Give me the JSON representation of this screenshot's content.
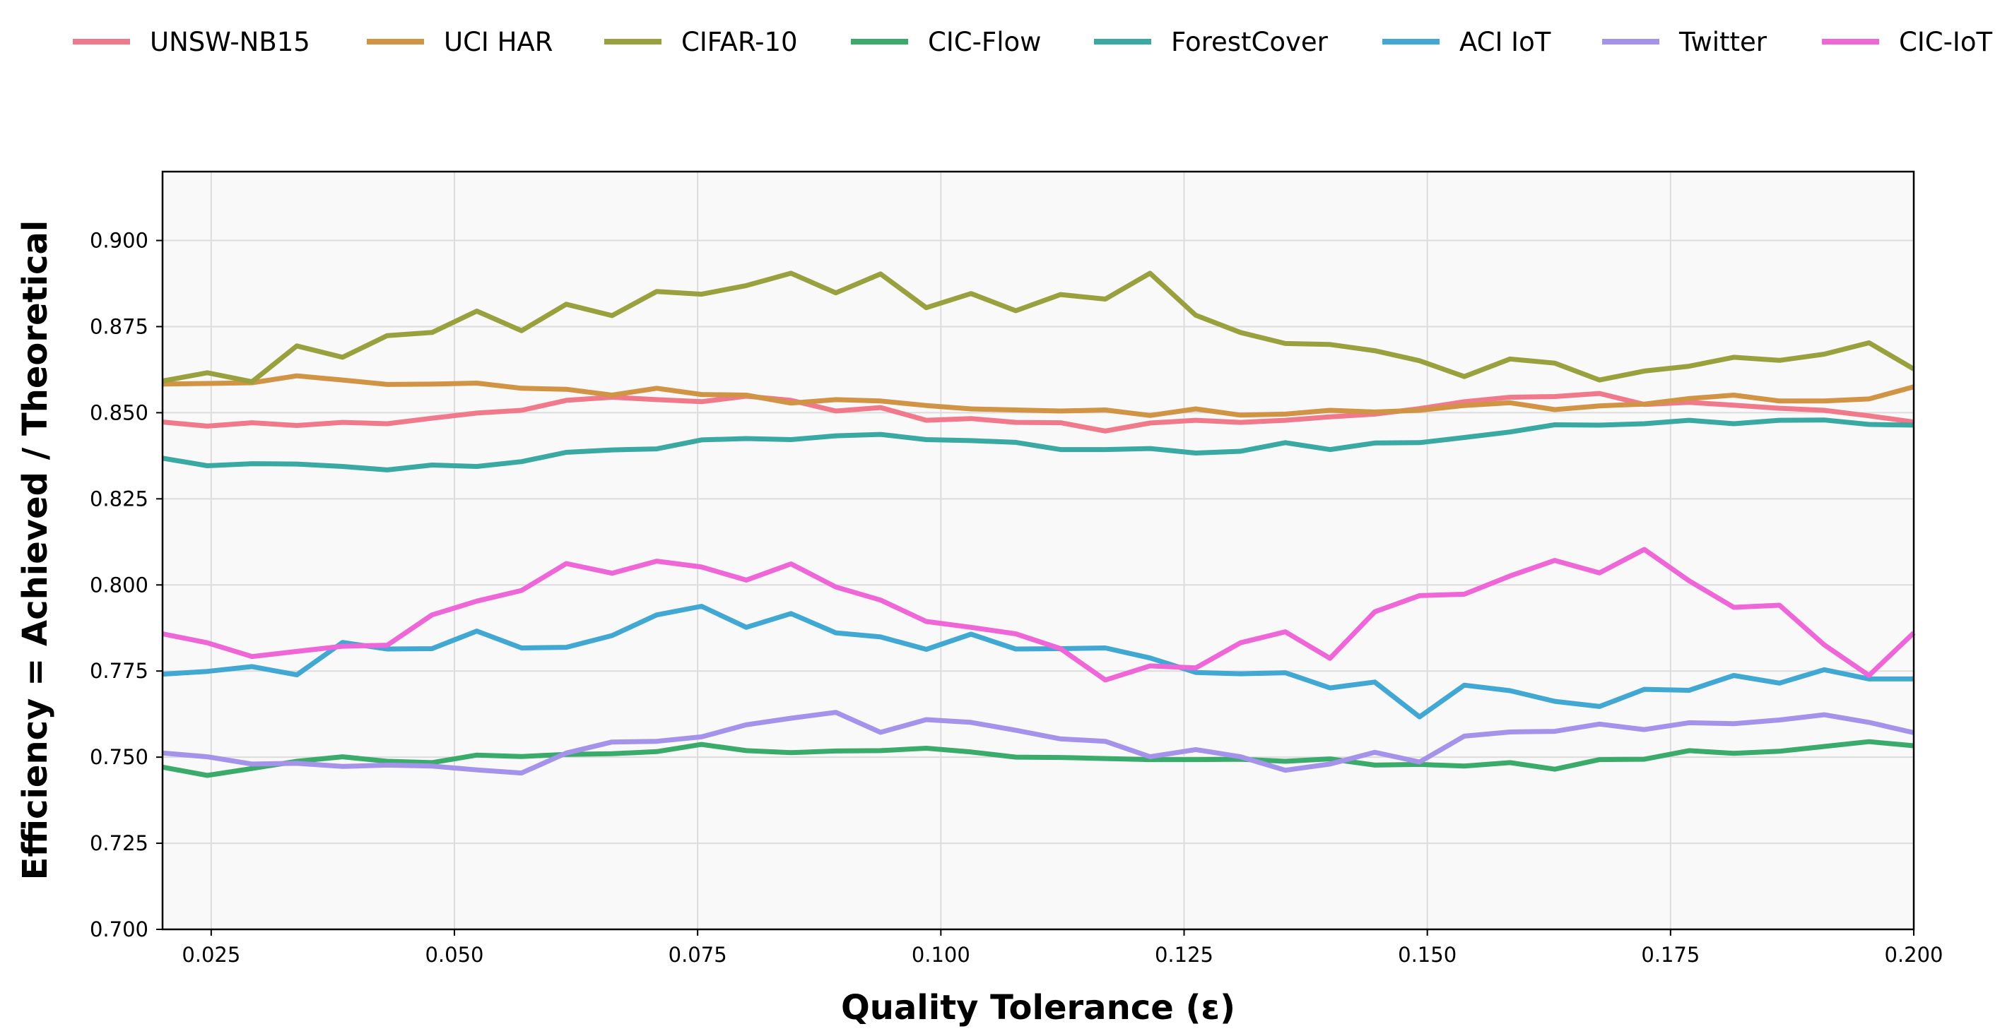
{
  "chart_data": {
    "type": "line",
    "title": "",
    "xlabel": "Quality Tolerance (ε)",
    "ylabel": "Efficiency = Achieved / Theoretical",
    "xlim": [
      0.02,
      0.2
    ],
    "ylim": [
      0.7,
      0.92
    ],
    "x_ticks": [
      "0.025",
      "0.050",
      "0.075",
      "0.100",
      "0.125",
      "0.150",
      "0.175",
      "0.200"
    ],
    "y_ticks": [
      "0.700",
      "0.725",
      "0.750",
      "0.775",
      "0.800",
      "0.825",
      "0.850",
      "0.875",
      "0.900"
    ],
    "grid": true,
    "legend_position": "top",
    "x": [
      0.02,
      0.0246,
      0.0292,
      0.0338,
      0.0385,
      0.0431,
      0.0477,
      0.0523,
      0.0569,
      0.0615,
      0.0662,
      0.0708,
      0.0754,
      0.08,
      0.0846,
      0.0892,
      0.0938,
      0.0985,
      0.1031,
      0.1077,
      0.1123,
      0.1169,
      0.1215,
      0.1262,
      0.1308,
      0.1354,
      0.14,
      0.1446,
      0.1492,
      0.1538,
      0.1585,
      0.1631,
      0.1677,
      0.1723,
      0.1769,
      0.1815,
      0.1862,
      0.1908,
      0.1954,
      0.2
    ],
    "series": [
      {
        "name": "UNSW-NB15",
        "color": "#f07a8c",
        "values": [
          0.8473,
          0.8461,
          0.8471,
          0.8463,
          0.8472,
          0.8468,
          0.8484,
          0.8499,
          0.8507,
          0.8536,
          0.8545,
          0.8538,
          0.8532,
          0.8548,
          0.8536,
          0.8505,
          0.8515,
          0.8478,
          0.8483,
          0.8472,
          0.8471,
          0.8447,
          0.847,
          0.8478,
          0.8472,
          0.8478,
          0.8488,
          0.8496,
          0.8512,
          0.8532,
          0.8545,
          0.8547,
          0.8556,
          0.8524,
          0.853,
          0.8522,
          0.8513,
          0.8507,
          0.8491,
          0.8473
        ]
      },
      {
        "name": "UCI HAR",
        "color": "#d19445",
        "values": [
          0.8583,
          0.8585,
          0.8587,
          0.8607,
          0.8595,
          0.8582,
          0.8583,
          0.8586,
          0.8571,
          0.8568,
          0.8551,
          0.8571,
          0.8553,
          0.8551,
          0.8528,
          0.8538,
          0.8534,
          0.8521,
          0.8511,
          0.8508,
          0.8505,
          0.8508,
          0.8492,
          0.8511,
          0.8493,
          0.8496,
          0.8507,
          0.8502,
          0.8507,
          0.8521,
          0.8529,
          0.8509,
          0.852,
          0.8525,
          0.8541,
          0.8551,
          0.8534,
          0.8534,
          0.854,
          0.8575
        ]
      },
      {
        "name": "CIFAR-10",
        "color": "#99a13e",
        "values": [
          0.8592,
          0.8616,
          0.859,
          0.8694,
          0.8661,
          0.8724,
          0.8733,
          0.8795,
          0.8738,
          0.8815,
          0.8782,
          0.8852,
          0.8844,
          0.8869,
          0.8905,
          0.8848,
          0.8903,
          0.8805,
          0.8846,
          0.8796,
          0.8843,
          0.883,
          0.8905,
          0.8783,
          0.8733,
          0.8701,
          0.8698,
          0.868,
          0.8651,
          0.8605,
          0.8656,
          0.8644,
          0.8595,
          0.8621,
          0.8635,
          0.8661,
          0.8652,
          0.867,
          0.8703,
          0.8627
        ]
      },
      {
        "name": "CIC-Flow",
        "color": "#3aab6b",
        "values": [
          0.7471,
          0.7447,
          0.7467,
          0.7488,
          0.7501,
          0.7488,
          0.7484,
          0.7506,
          0.7502,
          0.7508,
          0.751,
          0.7516,
          0.7537,
          0.7519,
          0.7513,
          0.7518,
          0.7519,
          0.7526,
          0.7515,
          0.75,
          0.7499,
          0.7496,
          0.7493,
          0.7493,
          0.7494,
          0.7488,
          0.7495,
          0.7477,
          0.7479,
          0.7474,
          0.7484,
          0.7465,
          0.7493,
          0.7494,
          0.7519,
          0.7511,
          0.7517,
          0.7531,
          0.7545,
          0.7533
        ]
      },
      {
        "name": "ForestCover",
        "color": "#3aa9a3",
        "values": [
          0.8368,
          0.8346,
          0.8352,
          0.8351,
          0.8344,
          0.8334,
          0.8348,
          0.8344,
          0.8358,
          0.8385,
          0.8392,
          0.8395,
          0.8421,
          0.8425,
          0.8422,
          0.8433,
          0.8437,
          0.8422,
          0.8419,
          0.8414,
          0.8393,
          0.8393,
          0.8396,
          0.8383,
          0.8388,
          0.8413,
          0.8393,
          0.8412,
          0.8413,
          0.8428,
          0.8444,
          0.8465,
          0.8464,
          0.8468,
          0.8478,
          0.8468,
          0.8478,
          0.8479,
          0.8466,
          0.8464
        ]
      },
      {
        "name": "ACI IoT",
        "color": "#41a8d3",
        "values": [
          0.7741,
          0.7749,
          0.7763,
          0.7739,
          0.7833,
          0.7814,
          0.7815,
          0.7866,
          0.7817,
          0.7819,
          0.7853,
          0.7913,
          0.7938,
          0.7877,
          0.7917,
          0.7861,
          0.7849,
          0.7813,
          0.7857,
          0.7814,
          0.7815,
          0.7817,
          0.7788,
          0.7746,
          0.7742,
          0.7745,
          0.7701,
          0.7718,
          0.7617,
          0.7709,
          0.7693,
          0.7662,
          0.7647,
          0.7697,
          0.7694,
          0.7737,
          0.7715,
          0.7754,
          0.7727,
          0.7727
        ]
      },
      {
        "name": "Twitter",
        "color": "#a592ea",
        "values": [
          0.7512,
          0.7501,
          0.748,
          0.7482,
          0.7473,
          0.7477,
          0.7474,
          0.7463,
          0.7454,
          0.7512,
          0.7544,
          0.7546,
          0.7559,
          0.7594,
          0.7613,
          0.763,
          0.7572,
          0.7609,
          0.7601,
          0.7578,
          0.7553,
          0.7546,
          0.7501,
          0.7522,
          0.7501,
          0.7462,
          0.748,
          0.7514,
          0.7486,
          0.7561,
          0.7573,
          0.7575,
          0.7596,
          0.758,
          0.76,
          0.7597,
          0.7608,
          0.7623,
          0.7601,
          0.7571
        ]
      },
      {
        "name": "CIC-IoT",
        "color": "#ee66d8",
        "values": [
          0.7858,
          0.7832,
          0.7792,
          0.7807,
          0.7822,
          0.7825,
          0.7913,
          0.7953,
          0.7984,
          0.8062,
          0.8034,
          0.8069,
          0.8052,
          0.8014,
          0.8061,
          0.7994,
          0.7956,
          0.7894,
          0.7877,
          0.7858,
          0.7815,
          0.7724,
          0.7765,
          0.7759,
          0.7832,
          0.7864,
          0.7787,
          0.7922,
          0.7969,
          0.7973,
          0.8026,
          0.8071,
          0.8035,
          0.8103,
          0.8012,
          0.7935,
          0.7941,
          0.7826,
          0.7737,
          0.7861
        ]
      }
    ]
  }
}
